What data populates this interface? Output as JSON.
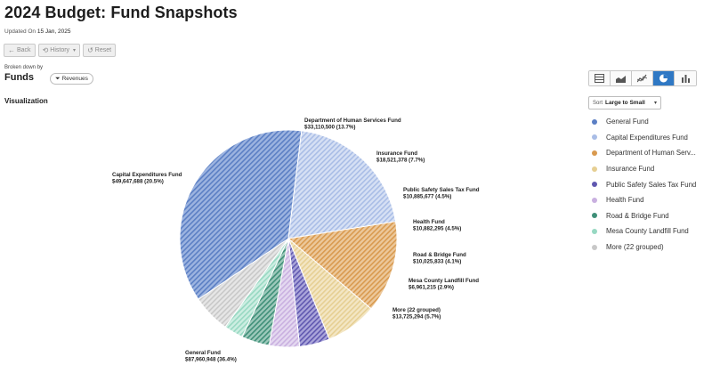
{
  "header": {
    "title": "2024 Budget: Fund Snapshots",
    "updated_prefix": "Updated On",
    "updated_date": "15 Jan, 2025"
  },
  "toolbar": {
    "back_label": "Back",
    "history_label": "History",
    "reset_label": "Reset"
  },
  "breakdown": {
    "label": "Broken down by",
    "value": "Funds",
    "filter_label": "Revenues"
  },
  "visualization": {
    "heading": "Visualization"
  },
  "view_switch": {
    "options": [
      "table-view",
      "area-view",
      "line-view",
      "pie-view",
      "bar-view"
    ],
    "active": "pie-view"
  },
  "sort": {
    "prefix": "Sort",
    "value": "Large to Small"
  },
  "colors": {
    "accent": "#2f78c4"
  },
  "legend": [
    {
      "label": "General Fund",
      "color": "#5b7fc4"
    },
    {
      "label": "Capital Expenditures Fund",
      "color": "#a9bde6"
    },
    {
      "label": "Department of Human Serv...",
      "color": "#d99a4f"
    },
    {
      "label": "Insurance Fund",
      "color": "#e6cf93"
    },
    {
      "label": "Public Safety Sales Tax Fund",
      "color": "#6058b0"
    },
    {
      "label": "Health Fund",
      "color": "#c9b0e0"
    },
    {
      "label": "Road & Bridge Fund",
      "color": "#3f8f78"
    },
    {
      "label": "Mesa County Landfill Fund",
      "color": "#97d8c2"
    },
    {
      "label": "More (22 grouped)",
      "color": "#c8c8c8"
    }
  ],
  "chart_data": {
    "type": "pie",
    "start": "bottom-left",
    "slices": [
      {
        "name": "General Fund",
        "value_label": "$87,960,948 (36.4%)",
        "value": 87960948,
        "percent": 36.4,
        "color": "#5b7fc4",
        "fill": "#9db4e0"
      },
      {
        "name": "Capital Expenditures Fund",
        "value_label": "$49,647,688 (20.5%)",
        "value": 49647688,
        "percent": 20.5,
        "color": "#a9bde6",
        "fill": "#d6e0f4"
      },
      {
        "name": "Department of Human Services Fund",
        "value_label": "$33,110,500 (13.7%)",
        "value": 33110500,
        "percent": 13.7,
        "color": "#d99a4f",
        "fill": "#ecc89b"
      },
      {
        "name": "Insurance Fund",
        "value_label": "$18,521,378 (7.7%)",
        "value": 18521378,
        "percent": 7.7,
        "color": "#e6cf93",
        "fill": "#f3e6c4"
      },
      {
        "name": "Public Safety Sales Tax Fund",
        "value_label": "$10,885,677 (4.5%)",
        "value": 10885677,
        "percent": 4.5,
        "color": "#6058b0",
        "fill": "#aaa5da"
      },
      {
        "name": "Health Fund",
        "value_label": "$10,882,295 (4.5%)",
        "value": 10882295,
        "percent": 4.5,
        "color": "#c9b0e0",
        "fill": "#e4d8f0"
      },
      {
        "name": "Road & Bridge Fund",
        "value_label": "$10,025,833 (4.1%)",
        "value": 10025833,
        "percent": 4.1,
        "color": "#3f8f78",
        "fill": "#9dc9bb"
      },
      {
        "name": "Mesa County Landfill Fund",
        "value_label": "$6,961,215 (2.9%)",
        "value": 6961215,
        "percent": 2.9,
        "color": "#97d8c2",
        "fill": "#cdeee2"
      },
      {
        "name": "More (22 grouped)",
        "value_label": "$13,725,294 (5.7%)",
        "value": 13725294,
        "percent": 5.7,
        "color": "#c8c8c8",
        "fill": "#e6e6e6"
      }
    ]
  }
}
